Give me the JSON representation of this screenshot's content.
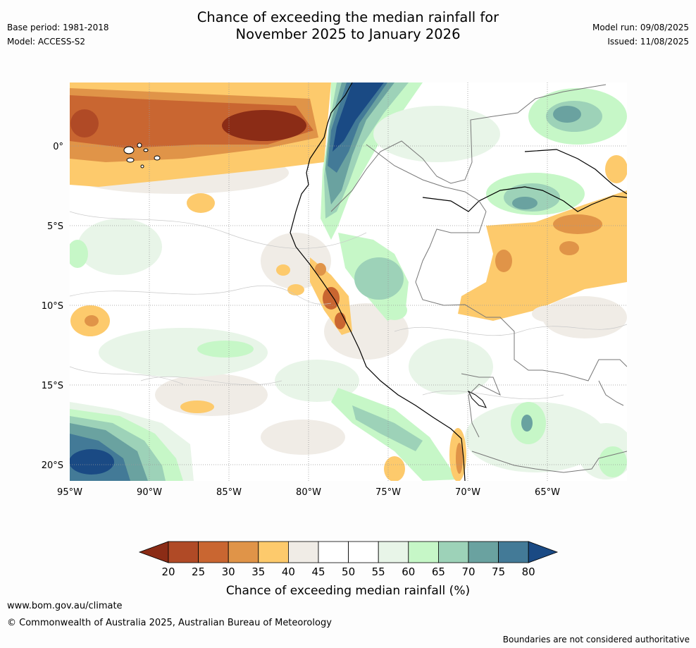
{
  "header": {
    "title_line1": "Chance of exceeding the median rainfall for",
    "title_line2": "November 2025 to January 2026",
    "base_period": "Base period: 1981-2018",
    "model": "Model: ACCESS-S2",
    "model_run": "Model run: 09/08/2025",
    "issued": "Issued: 11/08/2025"
  },
  "map": {
    "lon_ticks": [
      "95°W",
      "90°W",
      "85°W",
      "80°W",
      "75°W",
      "70°W",
      "65°W"
    ],
    "lat_ticks": [
      "0°",
      "5°S",
      "10°S",
      "15°S",
      "20°S"
    ]
  },
  "legend": {
    "title": "Chance of exceeding median rainfall (%)",
    "ticks": [
      "20",
      "25",
      "30",
      "35",
      "40",
      "45",
      "50",
      "55",
      "60",
      "65",
      "70",
      "75",
      "80"
    ],
    "colors": [
      "#8b2c16",
      "#b04a26",
      "#c96631",
      "#e09448",
      "#fdca6c",
      "#f0ece6",
      "#ffffff",
      "#ffffff",
      "#e8f5e8",
      "#c6f7c7",
      "#9dd2b8",
      "#6aa2a0",
      "#437a97",
      "#1a4a84"
    ]
  },
  "footer": {
    "url": "www.bom.gov.au/climate",
    "copyright": "© Commonwealth of Australia 2025, Australian Bureau of Meteorology",
    "note": "Boundaries are not considered authoritative"
  }
}
